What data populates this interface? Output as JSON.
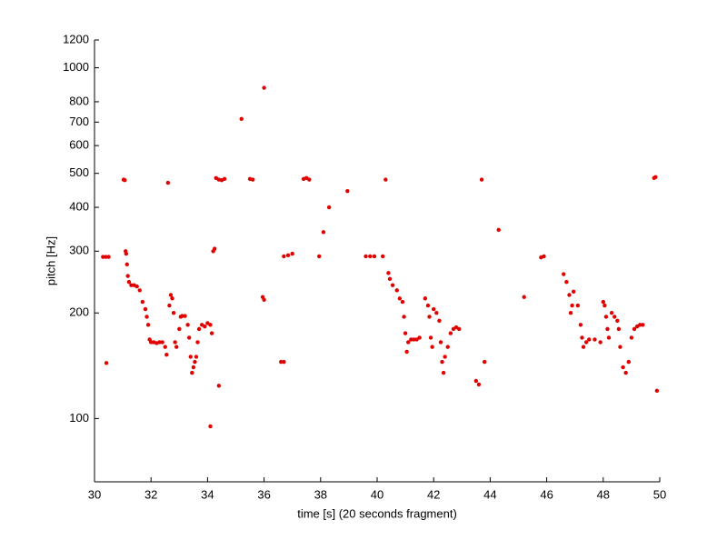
{
  "chart_data": {
    "type": "scatter",
    "xlabel": "time [s] (20 seconds fragment)",
    "ylabel": "pitch [Hz]",
    "color": "#e00000",
    "log_y": true,
    "xlim": [
      30,
      50
    ],
    "xticks": [
      30,
      32,
      34,
      36,
      38,
      40,
      42,
      44,
      46,
      48,
      50
    ],
    "ylim": [
      66,
      1200
    ],
    "yticks": [
      100,
      200,
      300,
      400,
      500,
      600,
      700,
      800,
      1000,
      1200
    ],
    "x": [
      30.3,
      30.4,
      30.5,
      30.42,
      31.03,
      31.07,
      31.1,
      31.12,
      31.15,
      31.18,
      31.22,
      31.3,
      31.4,
      31.5,
      31.6,
      31.7,
      31.8,
      31.85,
      31.9,
      31.95,
      32.0,
      32.1,
      32.2,
      32.3,
      32.4,
      32.5,
      32.55,
      32.6,
      32.65,
      32.7,
      32.75,
      32.8,
      32.85,
      32.9,
      33.0,
      33.05,
      33.1,
      33.2,
      33.3,
      33.35,
      33.4,
      33.45,
      33.5,
      33.55,
      33.6,
      33.65,
      33.7,
      33.8,
      33.9,
      34.0,
      34.1,
      34.1,
      34.15,
      34.2,
      34.25,
      34.3,
      34.4,
      34.5,
      34.6,
      34.4,
      35.2,
      35.5,
      35.6,
      36.0,
      35.95,
      36.0,
      36.6,
      36.7,
      36.7,
      36.85,
      37.0,
      37.4,
      37.5,
      37.6,
      37.95,
      38.1,
      38.3,
      38.95,
      39.6,
      39.75,
      39.9,
      40.2,
      40.3,
      40.4,
      40.45,
      40.55,
      40.7,
      40.8,
      40.9,
      40.95,
      41.0,
      41.05,
      41.1,
      41.2,
      41.3,
      41.4,
      41.5,
      41.7,
      41.8,
      41.85,
      41.9,
      41.95,
      42.0,
      42.1,
      42.2,
      42.25,
      42.3,
      42.35,
      42.4,
      42.5,
      42.6,
      42.7,
      42.8,
      42.9,
      43.5,
      43.7,
      43.6,
      43.8,
      44.3,
      45.2,
      45.8,
      45.9,
      46.6,
      46.7,
      46.8,
      46.85,
      46.9,
      46.95,
      47.1,
      47.2,
      47.25,
      47.3,
      47.4,
      47.5,
      47.7,
      47.9,
      48.0,
      48.05,
      48.1,
      48.15,
      48.2,
      48.3,
      48.4,
      48.5,
      48.55,
      48.6,
      48.7,
      48.8,
      48.9,
      49.0,
      49.1,
      49.2,
      49.3,
      49.4,
      49.8,
      49.85,
      49.9
    ],
    "y": [
      289,
      289,
      289,
      144,
      480,
      478,
      300,
      295,
      275,
      255,
      245,
      240,
      240,
      238,
      232,
      215,
      205,
      195,
      185,
      168,
      165,
      165,
      164,
      165,
      165,
      160,
      152,
      470,
      210,
      225,
      220,
      200,
      165,
      160,
      180,
      195,
      196,
      196,
      185,
      170,
      150,
      135,
      140,
      145,
      150,
      165,
      180,
      185,
      183,
      187,
      185,
      95,
      175,
      300,
      305,
      485,
      480,
      478,
      482,
      124,
      715,
      482,
      480,
      877,
      222,
      218,
      145,
      145,
      290,
      292,
      295,
      482,
      485,
      480,
      290,
      340,
      400,
      445,
      290,
      290,
      290,
      290,
      480,
      260,
      250,
      240,
      232,
      220,
      215,
      195,
      175,
      155,
      165,
      168,
      168,
      168,
      170,
      220,
      210,
      195,
      170,
      160,
      205,
      200,
      190,
      165,
      145,
      135,
      150,
      160,
      175,
      180,
      182,
      180,
      128,
      480,
      125,
      145,
      345,
      222,
      288,
      290,
      258,
      245,
      225,
      200,
      210,
      230,
      210,
      185,
      170,
      160,
      165,
      168,
      168,
      165,
      215,
      210,
      195,
      180,
      170,
      200,
      195,
      190,
      180,
      160,
      140,
      135,
      145,
      170,
      180,
      183,
      185,
      185,
      485,
      488,
      120
    ]
  }
}
